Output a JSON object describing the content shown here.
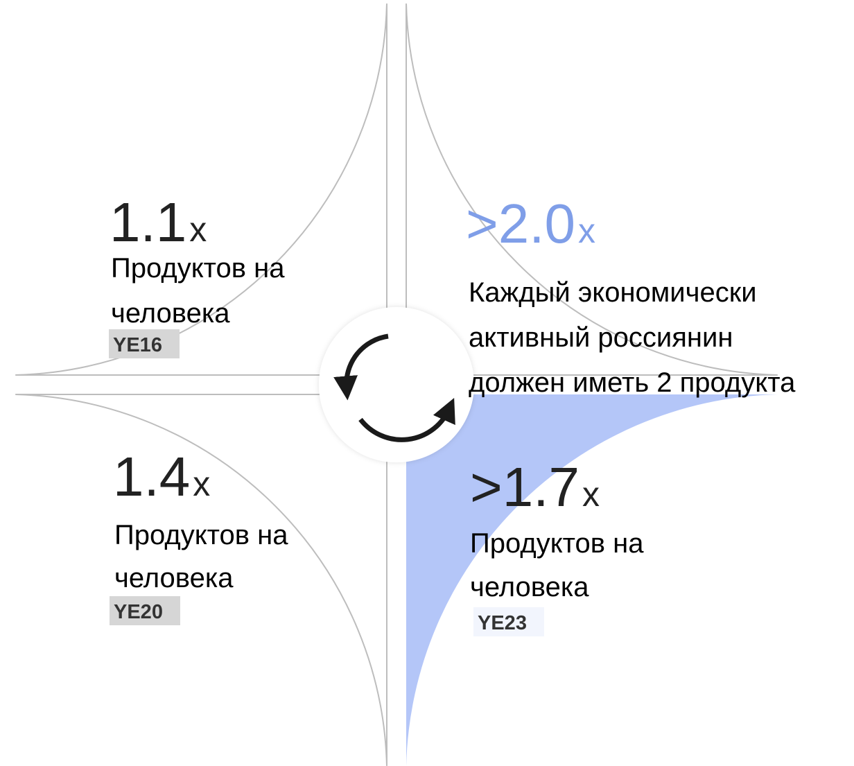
{
  "quadrants": [
    {
      "value": "1.1",
      "unit": "x",
      "label": [
        "Продуктов на",
        "человека"
      ],
      "period": "YE16"
    },
    {
      "value": ">2.0",
      "unit": "x",
      "label": [
        "Каждый экономически",
        "активный россиянин",
        "должен иметь 2 продукта"
      ]
    },
    {
      "value": "1.4",
      "unit": "x",
      "label": [
        "Продуктов на",
        "человека"
      ],
      "period": "YE20"
    },
    {
      "value": ">1.7",
      "unit": "x",
      "label": [
        "Продуктов на",
        "человека"
      ],
      "period": "YE23"
    }
  ]
}
